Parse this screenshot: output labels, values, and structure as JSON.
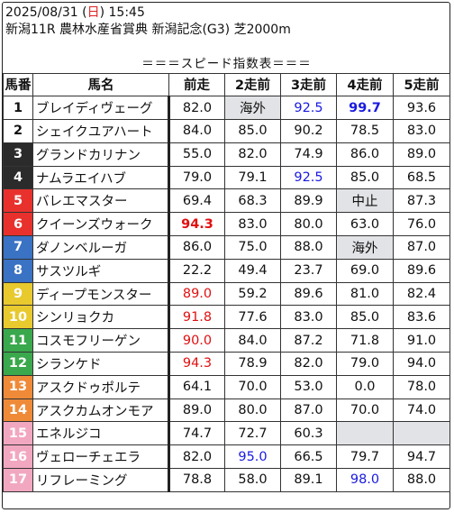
{
  "header": {
    "date_prefix": "2025/08/31 (",
    "weekday": "日",
    "time_suffix": ") 15:45",
    "race_title": "新潟11R 農林水産省賞典 新潟記念(G3) 芝2000m"
  },
  "banner": "＝＝＝スピード指数表＝＝＝",
  "columns": [
    "馬番",
    "馬名",
    "前走",
    "2走前",
    "3走前",
    "4走前",
    "5走前"
  ],
  "colors": {
    "highlight_red": "#e01010",
    "highlight_blue": "#1a1ae0",
    "note_grey": "#e2e3e6"
  },
  "rows": [
    {
      "num": "1",
      "name": "ブレイディヴェーグ",
      "bg": "#ffffff",
      "fg": "#111111",
      "cells": [
        {
          "t": "82.0"
        },
        {
          "t": "海外",
          "g": 1
        },
        {
          "t": "92.5",
          "c": "blue"
        },
        {
          "t": "99.7",
          "c": "blue",
          "b": 1
        },
        {
          "t": "93.6"
        }
      ]
    },
    {
      "num": "2",
      "name": "シェイクユアハート",
      "bg": "#ffffff",
      "fg": "#111111",
      "cells": [
        {
          "t": "84.0"
        },
        {
          "t": "85.0"
        },
        {
          "t": "90.2"
        },
        {
          "t": "78.5"
        },
        {
          "t": "83.0"
        }
      ]
    },
    {
      "num": "3",
      "name": "グランドカリナン",
      "bg": "#2b2b2b",
      "fg": "#ffffff",
      "cells": [
        {
          "t": "55.0"
        },
        {
          "t": "82.0"
        },
        {
          "t": "74.9"
        },
        {
          "t": "86.0"
        },
        {
          "t": "89.0"
        }
      ]
    },
    {
      "num": "4",
      "name": "ナムラエイハブ",
      "bg": "#2b2b2b",
      "fg": "#ffffff",
      "cells": [
        {
          "t": "79.0"
        },
        {
          "t": "79.1"
        },
        {
          "t": "92.5",
          "c": "blue"
        },
        {
          "t": "85.0"
        },
        {
          "t": "68.5"
        }
      ]
    },
    {
      "num": "5",
      "name": "バレエマスター",
      "bg": "#e8312d",
      "fg": "#ffffff",
      "cells": [
        {
          "t": "69.4"
        },
        {
          "t": "68.3"
        },
        {
          "t": "89.9"
        },
        {
          "t": "中止",
          "g": 1
        },
        {
          "t": "87.3"
        }
      ]
    },
    {
      "num": "6",
      "name": "クイーンズウォーク",
      "bg": "#e8312d",
      "fg": "#ffffff",
      "cells": [
        {
          "t": "94.3",
          "c": "red",
          "b": 1
        },
        {
          "t": "83.0"
        },
        {
          "t": "80.0"
        },
        {
          "t": "63.0"
        },
        {
          "t": "76.0"
        }
      ]
    },
    {
      "num": "7",
      "name": "ダノンベルーガ",
      "bg": "#3a72c4",
      "fg": "#ffffff",
      "cells": [
        {
          "t": "86.0"
        },
        {
          "t": "75.0"
        },
        {
          "t": "88.0"
        },
        {
          "t": "海外",
          "g": 1
        },
        {
          "t": "87.0"
        }
      ]
    },
    {
      "num": "8",
      "name": "サスツルギ",
      "bg": "#3a72c4",
      "fg": "#ffffff",
      "cells": [
        {
          "t": "22.2"
        },
        {
          "t": "49.4"
        },
        {
          "t": "23.7"
        },
        {
          "t": "69.0"
        },
        {
          "t": "89.6"
        }
      ]
    },
    {
      "num": "9",
      "name": "ディープモンスター",
      "bg": "#e8c92e",
      "fg": "#ffffff",
      "cells": [
        {
          "t": "89.0",
          "c": "red"
        },
        {
          "t": "59.2"
        },
        {
          "t": "89.6"
        },
        {
          "t": "81.0"
        },
        {
          "t": "82.4"
        }
      ]
    },
    {
      "num": "10",
      "name": "シンリョクカ",
      "bg": "#e8c92e",
      "fg": "#ffffff",
      "cells": [
        {
          "t": "91.8",
          "c": "red"
        },
        {
          "t": "77.6"
        },
        {
          "t": "83.0"
        },
        {
          "t": "85.0"
        },
        {
          "t": "83.6"
        }
      ]
    },
    {
      "num": "11",
      "name": "コスモフリーゲン",
      "bg": "#3aa84c",
      "fg": "#ffffff",
      "cells": [
        {
          "t": "90.0",
          "c": "red"
        },
        {
          "t": "84.0"
        },
        {
          "t": "87.2"
        },
        {
          "t": "71.8"
        },
        {
          "t": "91.0"
        }
      ]
    },
    {
      "num": "12",
      "name": "シランケド",
      "bg": "#3aa84c",
      "fg": "#ffffff",
      "cells": [
        {
          "t": "94.3",
          "c": "red"
        },
        {
          "t": "78.9"
        },
        {
          "t": "82.0"
        },
        {
          "t": "79.0"
        },
        {
          "t": "94.0"
        }
      ]
    },
    {
      "num": "13",
      "name": "アスクドゥポルテ",
      "bg": "#ef8a38",
      "fg": "#ffffff",
      "cells": [
        {
          "t": "64.1"
        },
        {
          "t": "70.0"
        },
        {
          "t": "53.0"
        },
        {
          "t": "0.0"
        },
        {
          "t": "78.0"
        }
      ]
    },
    {
      "num": "14",
      "name": "アスクカムオンモア",
      "bg": "#ef8a38",
      "fg": "#ffffff",
      "cells": [
        {
          "t": "89.0"
        },
        {
          "t": "80.0"
        },
        {
          "t": "87.0"
        },
        {
          "t": "70.0"
        },
        {
          "t": "74.0"
        }
      ]
    },
    {
      "num": "15",
      "name": "エネルジコ",
      "bg": "#f2a7c0",
      "fg": "#ffffff",
      "cells": [
        {
          "t": "74.7"
        },
        {
          "t": "72.7"
        },
        {
          "t": "60.3"
        },
        {
          "t": "",
          "g": 1
        },
        {
          "t": "",
          "g": 1
        }
      ]
    },
    {
      "num": "16",
      "name": "ヴェローチェエラ",
      "bg": "#f2a7c0",
      "fg": "#ffffff",
      "cells": [
        {
          "t": "82.0"
        },
        {
          "t": "95.0",
          "c": "blue"
        },
        {
          "t": "66.5"
        },
        {
          "t": "79.7"
        },
        {
          "t": "94.7"
        }
      ]
    },
    {
      "num": "17",
      "name": "リフレーミング",
      "bg": "#f2a7c0",
      "fg": "#ffffff",
      "cells": [
        {
          "t": "78.8"
        },
        {
          "t": "58.0"
        },
        {
          "t": "89.1"
        },
        {
          "t": "98.0",
          "c": "blue"
        },
        {
          "t": "88.0"
        }
      ]
    }
  ]
}
